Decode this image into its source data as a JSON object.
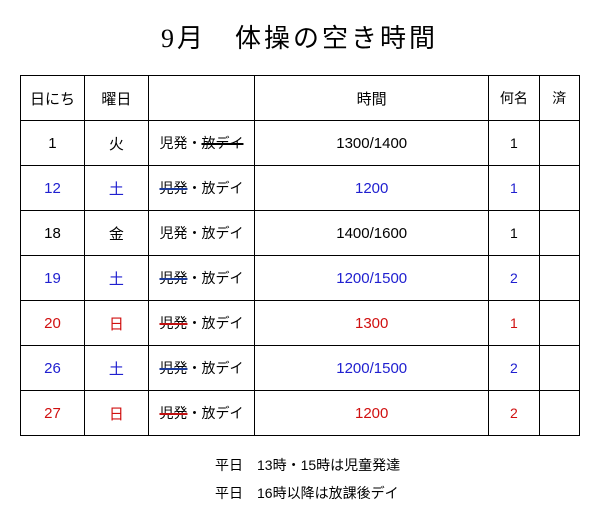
{
  "title": "9月　体操の空き時間",
  "headers": {
    "date": "日にち",
    "day": "曜日",
    "type": "",
    "time": "時間",
    "count": "何名",
    "done": "済"
  },
  "rows": [
    {
      "date": "1",
      "day": "火",
      "type_a": "児発",
      "type_a_strike": false,
      "type_b": "放デイ",
      "type_b_strike": true,
      "time": "1300/1400",
      "count": "1",
      "color": "black"
    },
    {
      "date": "12",
      "day": "土",
      "type_a": "児発",
      "type_a_strike": true,
      "type_b": "放デイ",
      "type_b_strike": false,
      "time": "1200",
      "count": "1",
      "color": "blue"
    },
    {
      "date": "18",
      "day": "金",
      "type_a": "児発",
      "type_a_strike": false,
      "type_b": "放デイ",
      "type_b_strike": false,
      "time": "1400/1600",
      "count": "1",
      "color": "black"
    },
    {
      "date": "19",
      "day": "土",
      "type_a": "児発",
      "type_a_strike": true,
      "type_b": "放デイ",
      "type_b_strike": false,
      "time": "1200/1500",
      "count": "2",
      "color": "blue"
    },
    {
      "date": "20",
      "day": "日",
      "type_a": "児発",
      "type_a_strike": true,
      "type_b": "放デイ",
      "type_b_strike": false,
      "time": "1300",
      "count": "1",
      "color": "red"
    },
    {
      "date": "26",
      "day": "土",
      "type_a": "児発",
      "type_a_strike": true,
      "type_b": "放デイ",
      "type_b_strike": false,
      "time": "1200/1500",
      "count": "2",
      "color": "blue"
    },
    {
      "date": "27",
      "day": "日",
      "type_a": "児発",
      "type_a_strike": true,
      "type_b": "放デイ",
      "type_b_strike": false,
      "time": "1200",
      "count": "2",
      "color": "red"
    }
  ],
  "notes": {
    "line1": "平日　13時・15時は児童発達",
    "line2": "平日　16時以降は放課後デイ"
  },
  "colors": {
    "black": "#000000",
    "blue": "#2020d0",
    "red": "#d01010"
  }
}
